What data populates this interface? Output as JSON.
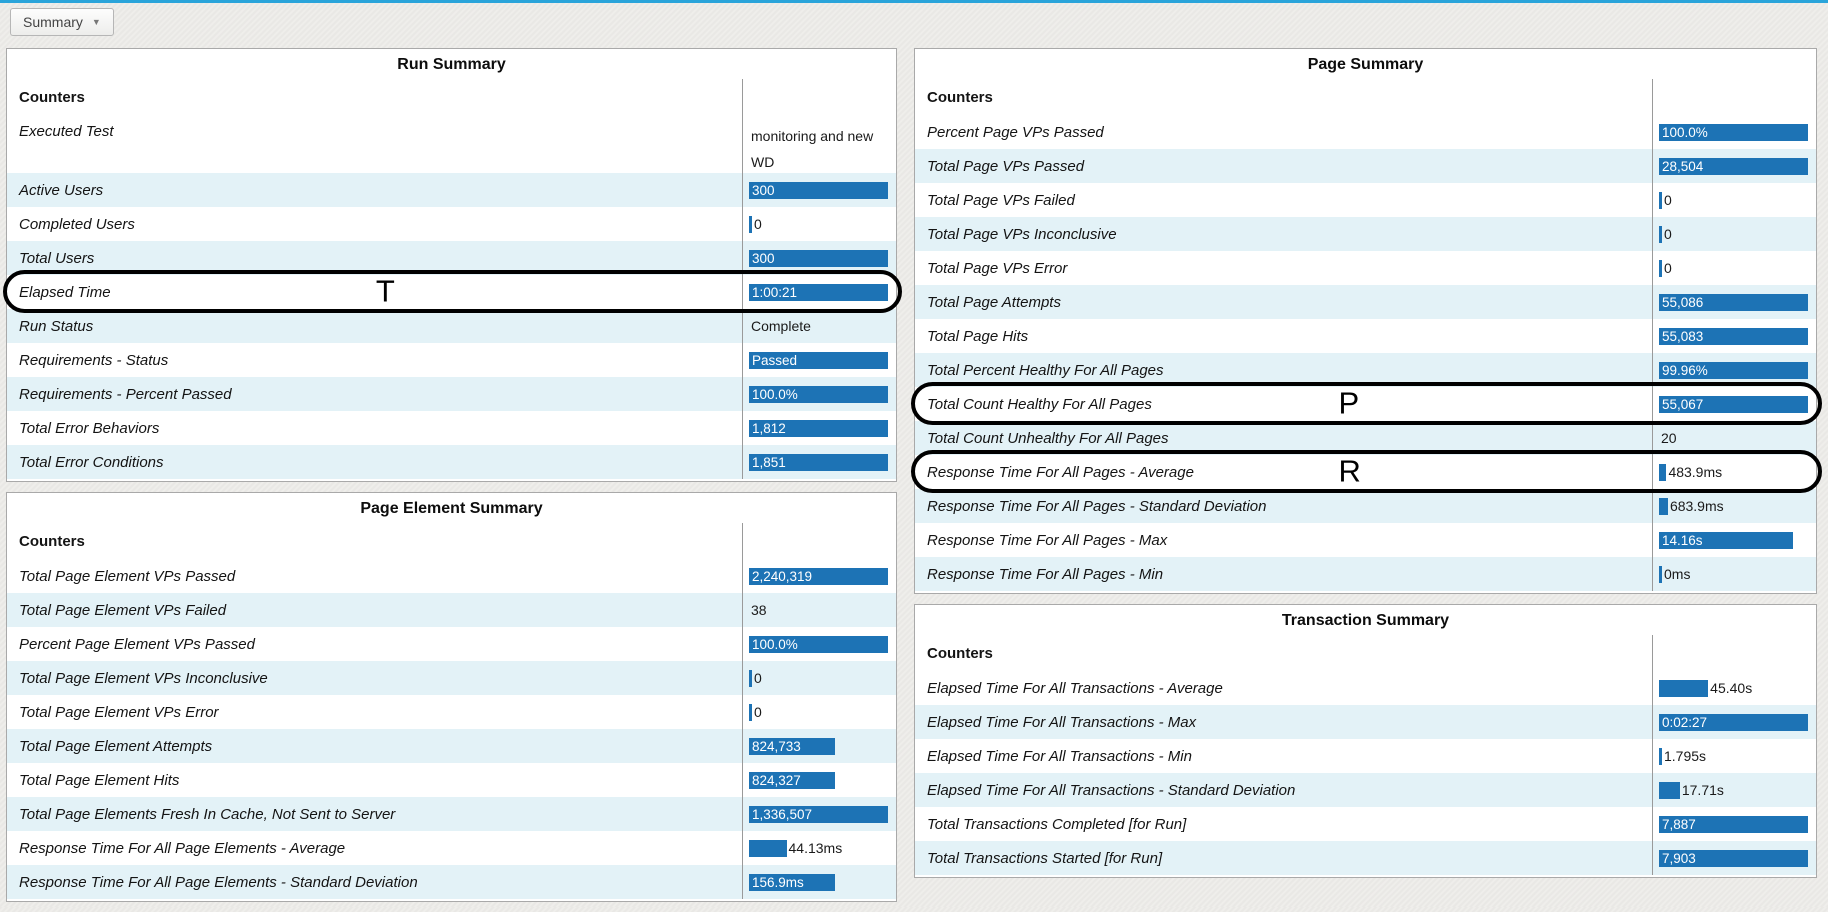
{
  "toolbar": {
    "summary_button_label": "Summary",
    "caret_icon": "▼"
  },
  "colors": {
    "bar_blue": "#1d73b5",
    "row_alt_tint": "#e3f2f7",
    "top_line": "#2aa4da",
    "annotation": "#000000"
  },
  "panels": [
    {
      "id": "run-summary",
      "title": "Run Summary",
      "counters_label": "Counters",
      "column": "left",
      "rows": [
        {
          "label": "Executed Test",
          "value": "monitoring and new WD",
          "value_lines": [
            "monitoring and new",
            "WD"
          ],
          "display": "text",
          "tall": true
        },
        {
          "label": "Active Users",
          "value": "300",
          "display": "bar",
          "bar_pct": 100
        },
        {
          "label": "Completed Users",
          "value": "0",
          "display": "tick"
        },
        {
          "label": "Total Users",
          "value": "300",
          "display": "bar",
          "bar_pct": 100
        },
        {
          "label": "Elapsed Time",
          "value": "1:00:21",
          "display": "bar",
          "bar_pct": 100,
          "annotation": "T"
        },
        {
          "label": "Run Status",
          "value": "Complete",
          "display": "text"
        },
        {
          "label": "Requirements - Status",
          "value": "Passed",
          "display": "bar",
          "bar_pct": 100
        },
        {
          "label": "Requirements - Percent Passed",
          "value": "100.0%",
          "display": "bar",
          "bar_pct": 100
        },
        {
          "label": "Total Error Behaviors",
          "value": "1,812",
          "display": "bar",
          "bar_pct": 100
        },
        {
          "label": "Total Error Conditions",
          "value": "1,851",
          "display": "bar",
          "bar_pct": 100
        }
      ]
    },
    {
      "id": "page-element-summary",
      "title": "Page Element Summary",
      "counters_label": "Counters",
      "column": "left",
      "rows": [
        {
          "label": "Total Page Element VPs Passed",
          "value": "2,240,319",
          "display": "bar",
          "bar_pct": 100
        },
        {
          "label": "Total Page Element VPs Failed",
          "value": "38",
          "display": "text"
        },
        {
          "label": "Percent Page Element VPs Passed",
          "value": "100.0%",
          "display": "bar",
          "bar_pct": 100
        },
        {
          "label": "Total Page Element VPs Inconclusive",
          "value": "0",
          "display": "tick"
        },
        {
          "label": "Total Page Element VPs Error",
          "value": "0",
          "display": "tick"
        },
        {
          "label": "Total Page Element Attempts",
          "value": "824,733",
          "display": "bar",
          "bar_pct": 62
        },
        {
          "label": "Total Page Element Hits",
          "value": "824,327",
          "display": "bar",
          "bar_pct": 62
        },
        {
          "label": "Total Page Elements Fresh In Cache, Not Sent to Server",
          "value": "1,336,507",
          "display": "bar",
          "bar_pct": 100
        },
        {
          "label": "Response Time For All Page Elements - Average",
          "value": "44.13ms",
          "display": "bar-label",
          "bar_pct": 27
        },
        {
          "label": "Response Time For All Page Elements - Standard Deviation",
          "value": "156.9ms",
          "display": "bar",
          "bar_pct": 62
        }
      ]
    },
    {
      "id": "page-summary",
      "title": "Page Summary",
      "counters_label": "Counters",
      "column": "right",
      "rows": [
        {
          "label": "Percent Page VPs Passed",
          "value": "100.0%",
          "display": "bar",
          "bar_pct": 100
        },
        {
          "label": "Total Page VPs Passed",
          "value": "28,504",
          "display": "bar",
          "bar_pct": 100
        },
        {
          "label": "Total Page VPs Failed",
          "value": "0",
          "display": "tick"
        },
        {
          "label": "Total Page VPs Inconclusive",
          "value": "0",
          "display": "tick"
        },
        {
          "label": "Total Page VPs Error",
          "value": "0",
          "display": "tick"
        },
        {
          "label": "Total Page Attempts",
          "value": "55,086",
          "display": "bar",
          "bar_pct": 100
        },
        {
          "label": "Total Page Hits",
          "value": "55,083",
          "display": "bar",
          "bar_pct": 100
        },
        {
          "label": "Total Percent Healthy For All Pages",
          "value": "99.96%",
          "display": "bar",
          "bar_pct": 100
        },
        {
          "label": "Total Count Healthy For All Pages",
          "value": "55,067",
          "display": "bar",
          "bar_pct": 100,
          "annotation": "P"
        },
        {
          "label": "Total Count Unhealthy For All Pages",
          "value": "20",
          "display": "text"
        },
        {
          "label": "Response Time For All Pages - Average",
          "value": "483.9ms",
          "display": "bar-label",
          "bar_pct": 5,
          "annotation": "R"
        },
        {
          "label": "Response Time For All Pages - Standard Deviation",
          "value": "683.9ms",
          "display": "bar-label",
          "bar_pct": 6
        },
        {
          "label": "Response Time For All Pages - Max",
          "value": "14.16s",
          "display": "bar",
          "bar_pct": 90
        },
        {
          "label": "Response Time For All Pages - Min",
          "value": "0ms",
          "display": "tick"
        }
      ]
    },
    {
      "id": "transaction-summary",
      "title": "Transaction Summary",
      "counters_label": "Counters",
      "column": "right",
      "rows": [
        {
          "label": "Elapsed Time For All Transactions - Average",
          "value": "45.40s",
          "display": "bar-label",
          "bar_pct": 33
        },
        {
          "label": "Elapsed Time For All Transactions - Max",
          "value": "0:02:27",
          "display": "bar",
          "bar_pct": 100
        },
        {
          "label": "Elapsed Time For All Transactions - Min",
          "value": "1.795s",
          "display": "tick"
        },
        {
          "label": "Elapsed Time For All Transactions - Standard Deviation",
          "value": "17.71s",
          "display": "bar-label",
          "bar_pct": 14
        },
        {
          "label": "Total Transactions Completed [for Run]",
          "value": "7,887",
          "display": "bar",
          "bar_pct": 100
        },
        {
          "label": "Total Transactions Started [for Run]",
          "value": "7,903",
          "display": "bar",
          "bar_pct": 100
        }
      ]
    }
  ]
}
